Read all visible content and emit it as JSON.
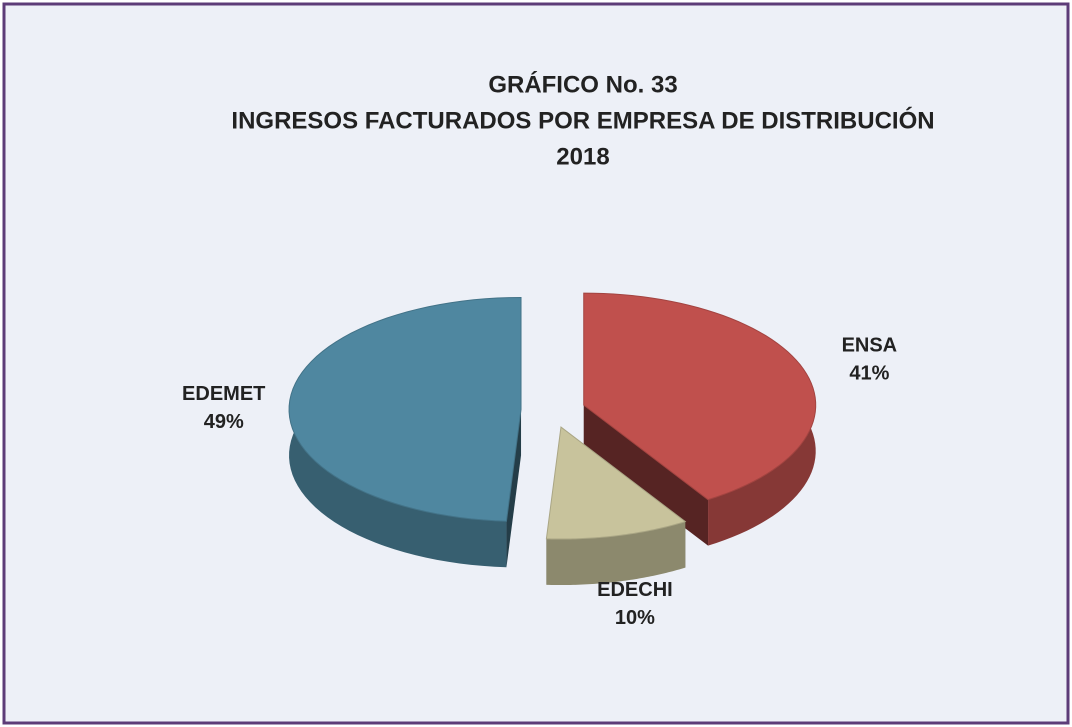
{
  "chart_data": {
    "type": "pie3d",
    "title": [
      "GRÁFICO  No. 33",
      "INGRESOS FACTURADOS POR EMPRESA DE DISTRIBUCIÓN",
      "2018"
    ],
    "categories": [
      "ENSA",
      "EDECHI",
      "EDEMET"
    ],
    "values": [
      41,
      10,
      49
    ],
    "value_labels": [
      "41%",
      "10%",
      "49%"
    ],
    "colors": [
      "#c0504d",
      "#c8c39c",
      "#4f87a0"
    ]
  }
}
